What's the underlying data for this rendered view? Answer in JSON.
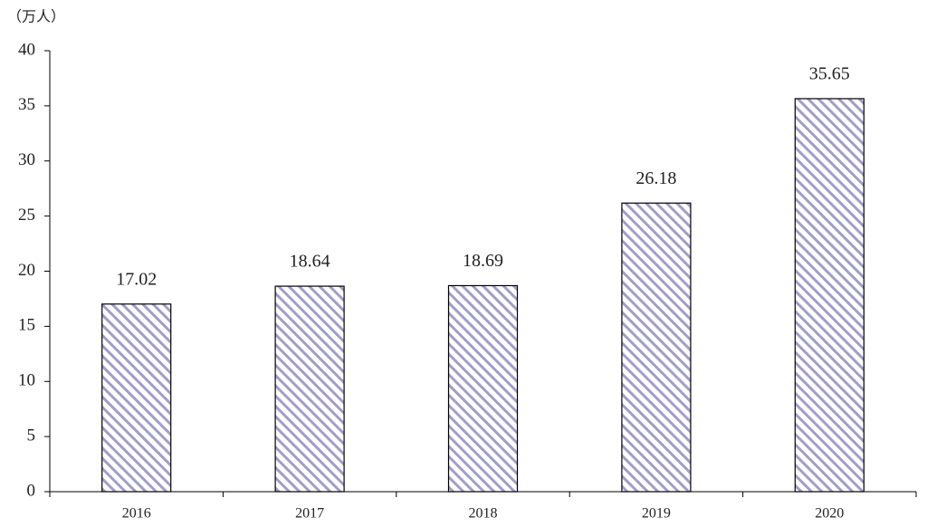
{
  "chart_data": {
    "type": "bar",
    "y_label": "（万人）",
    "categories": [
      "2016",
      "2017",
      "2018",
      "2019",
      "2020"
    ],
    "values": [
      17.02,
      18.64,
      18.69,
      26.18,
      35.65
    ],
    "color": "#a29dc8",
    "ylim": [
      0,
      40
    ],
    "yticks": [
      0,
      5,
      10,
      15,
      20,
      25,
      30,
      35,
      40
    ],
    "grid": false
  }
}
